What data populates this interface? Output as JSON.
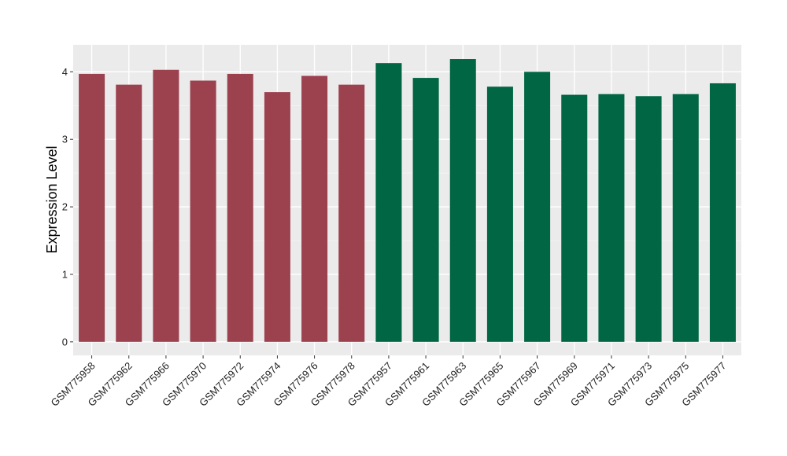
{
  "chart_data": {
    "type": "bar",
    "title": "",
    "xlabel": "",
    "ylabel": "Expression Level",
    "ylim": [
      -0.2,
      4.4
    ],
    "yticks": [
      0,
      1,
      2,
      3,
      4
    ],
    "grid": true,
    "panel_background": "#ebebeb",
    "categories": [
      "GSM775958",
      "GSM775962",
      "GSM775966",
      "GSM775970",
      "GSM775972",
      "GSM775974",
      "GSM775976",
      "GSM775978",
      "GSM775957",
      "GSM775961",
      "GSM775963",
      "GSM775965",
      "GSM775967",
      "GSM775969",
      "GSM775971",
      "GSM775973",
      "GSM775975",
      "GSM775977"
    ],
    "values": [
      3.97,
      3.81,
      4.03,
      3.87,
      3.97,
      3.7,
      3.94,
      3.81,
      4.13,
      3.91,
      4.19,
      3.78,
      4.0,
      3.66,
      3.67,
      3.64,
      3.67,
      3.83
    ],
    "bar_colors": [
      "#9c424f",
      "#9c424f",
      "#9c424f",
      "#9c424f",
      "#9c424f",
      "#9c424f",
      "#9c424f",
      "#9c424f",
      "#006644",
      "#006644",
      "#006644",
      "#006644",
      "#006644",
      "#006644",
      "#006644",
      "#006644",
      "#006644",
      "#006644"
    ]
  }
}
